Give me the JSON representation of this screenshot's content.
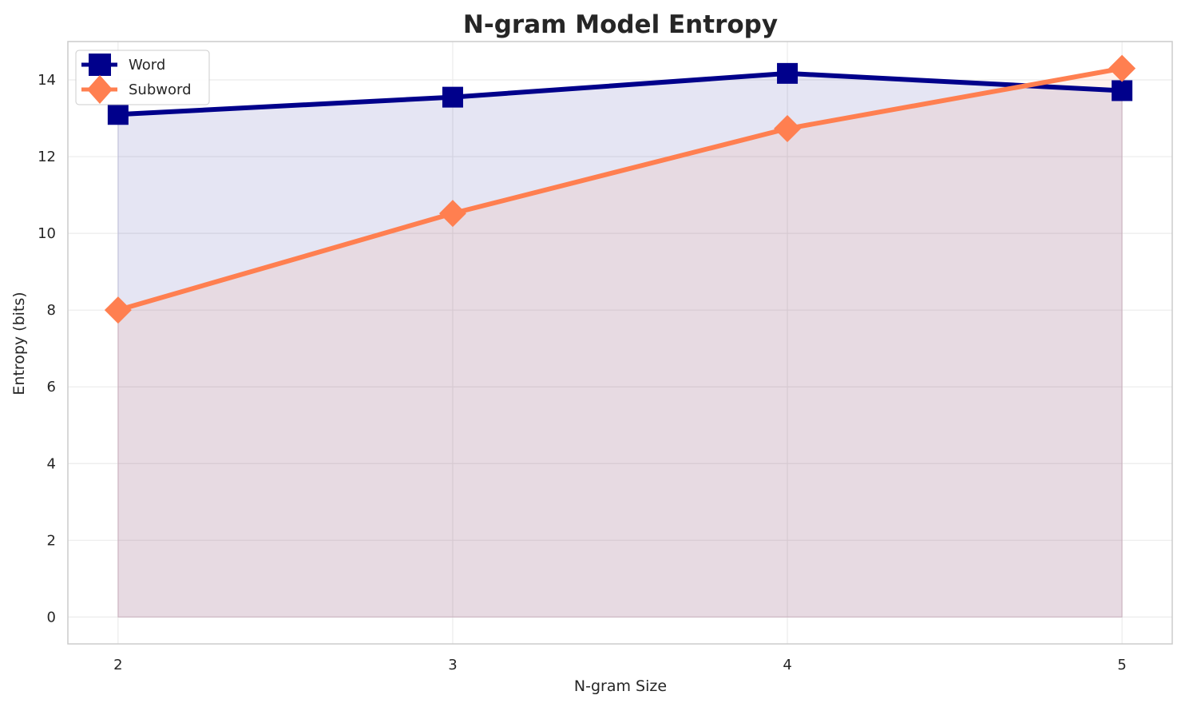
{
  "chart_data": {
    "type": "line",
    "title": "N-gram Model Entropy",
    "xlabel": "N-gram Size",
    "ylabel": "Entropy (bits)",
    "x": [
      2,
      3,
      4,
      5
    ],
    "x_tick_labels": [
      "2",
      "3",
      "4",
      "5"
    ],
    "y_ticks": [
      0,
      2,
      4,
      6,
      8,
      10,
      12,
      14
    ],
    "y_tick_labels": [
      "0",
      "2",
      "4",
      "6",
      "8",
      "10",
      "12",
      "14"
    ],
    "ylim": [
      -0.7,
      15.0
    ],
    "xlim": [
      1.85,
      5.15
    ],
    "grid": true,
    "legend_position": "top-left",
    "filled_to_zero": true,
    "series": [
      {
        "name": "Word",
        "values": [
          13.1,
          13.55,
          14.17,
          13.72
        ],
        "color": "#00008b",
        "marker": "square",
        "fill": "#e6e6f5"
      },
      {
        "name": "Subword",
        "values": [
          8.0,
          10.52,
          12.73,
          14.3
        ],
        "color": "#ff7f50",
        "marker": "diamond",
        "fill": "#f5dcd0"
      }
    ]
  }
}
